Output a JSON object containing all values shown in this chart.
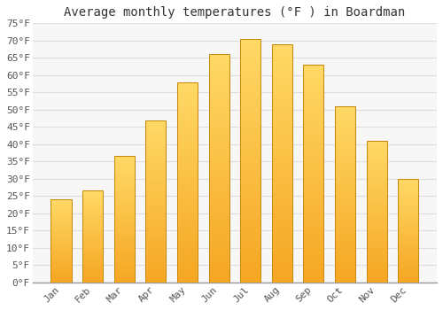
{
  "title": "Average monthly temperatures (°F ) in Boardman",
  "months": [
    "Jan",
    "Feb",
    "Mar",
    "Apr",
    "May",
    "Jun",
    "Jul",
    "Aug",
    "Sep",
    "Oct",
    "Nov",
    "Dec"
  ],
  "values": [
    24,
    26.5,
    36.5,
    47,
    58,
    66,
    70.5,
    69,
    63,
    51,
    41,
    30
  ],
  "bar_color_bottom": "#F5A623",
  "bar_color_top": "#FFD966",
  "bar_edge_color": "#C8860A",
  "background_color": "#FFFFFF",
  "plot_bg_color": "#F7F7F7",
  "grid_color": "#DDDDDD",
  "text_color": "#555555",
  "ylim": [
    0,
    75
  ],
  "yticks": [
    0,
    5,
    10,
    15,
    20,
    25,
    30,
    35,
    40,
    45,
    50,
    55,
    60,
    65,
    70,
    75
  ],
  "title_fontsize": 10,
  "tick_fontsize": 8,
  "font_family": "monospace",
  "bar_width": 0.65
}
